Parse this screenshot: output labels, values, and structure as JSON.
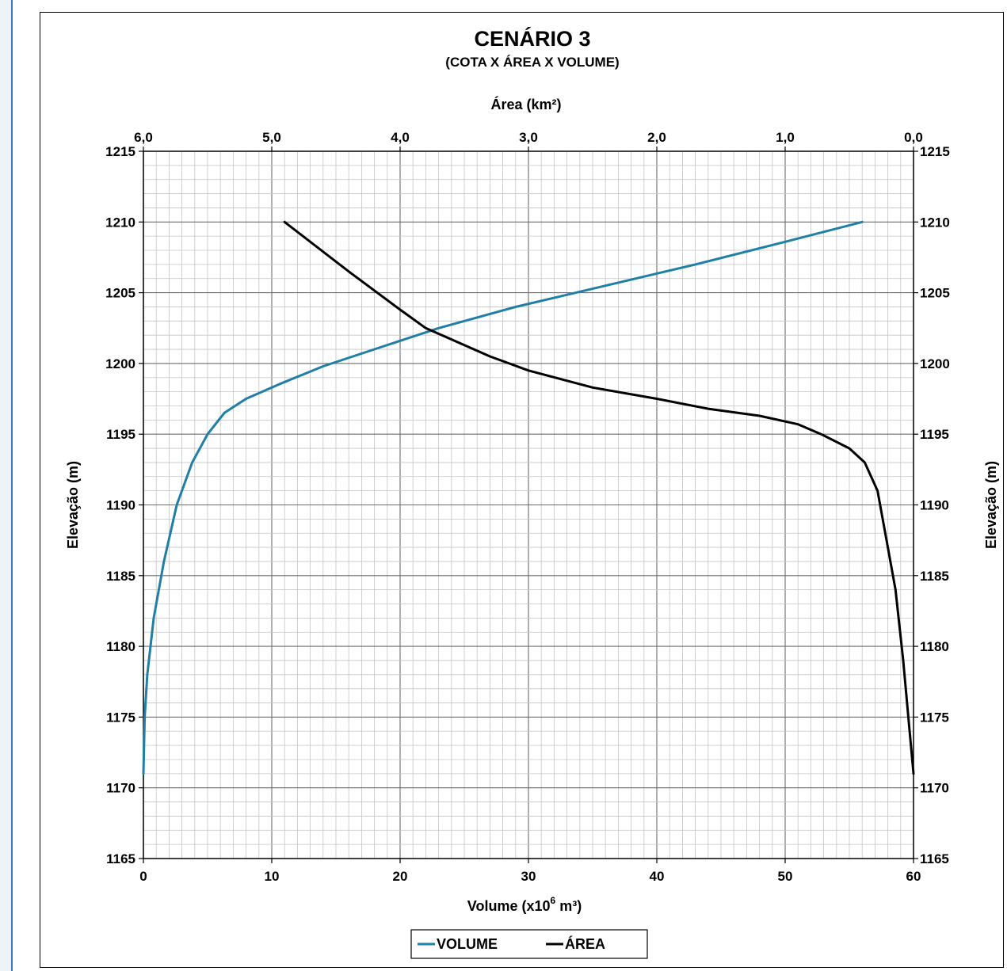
{
  "chart_data": {
    "type": "line",
    "title": "CENÁRIO 3",
    "subtitle": "(COTA X ÁREA X VOLUME)",
    "xlabel_bottom": "Volume (x10",
    "xlabel_bottom_sup": "6",
    "xlabel_bottom_end": " m³)",
    "xlabel_top": "Área (km²)",
    "ylabel_left": "Elevação (m)",
    "ylabel_right": "Elevação (m)",
    "ylim": [
      1165,
      1215
    ],
    "xlim_bottom": [
      0,
      60
    ],
    "xlim_top": [
      6.0,
      0.0
    ],
    "y_ticks": [
      "1165",
      "1170",
      "1175",
      "1180",
      "1185",
      "1190",
      "1195",
      "1200",
      "1205",
      "1210",
      "1215"
    ],
    "x_bottom_ticks": [
      "0",
      "10",
      "20",
      "30",
      "40",
      "50",
      "60"
    ],
    "x_top_ticks": [
      "6,0",
      "5,0",
      "4,0",
      "3,0",
      "2,0",
      "1,0",
      "0,0"
    ],
    "grid": true,
    "legend_position": "bottom",
    "series": [
      {
        "name": "VOLUME",
        "axis": "bottom",
        "color": "#1f7fa6",
        "x": [
          0,
          0.1,
          0.3,
          0.8,
          1.6,
          2.6,
          3.8,
          5.0,
          6.3,
          8.0,
          10.5,
          14.0,
          18.0,
          23.0,
          29.0,
          36.0,
          43.0,
          50.0,
          56.0
        ],
        "y": [
          1171,
          1175,
          1178,
          1182,
          1186,
          1190,
          1193,
          1195,
          1196.5,
          1197.5,
          1198.5,
          1199.8,
          1201,
          1202.5,
          1204,
          1205.5,
          1207,
          1208.6,
          1210
        ]
      },
      {
        "name": "ÁREA",
        "axis": "top",
        "color": "#000000",
        "x": [
          0.0,
          0.03,
          0.08,
          0.14,
          0.2,
          0.28,
          0.38,
          0.5,
          0.72,
          0.9,
          1.2,
          1.6,
          2.0,
          2.5,
          3.0,
          3.3,
          3.8,
          4.0,
          4.4,
          4.9
        ],
        "y": [
          1171,
          1174,
          1179,
          1184,
          1187,
          1191,
          1193,
          1194,
          1195,
          1195.7,
          1196.3,
          1196.8,
          1197.5,
          1198.3,
          1199.5,
          1200.5,
          1202.5,
          1203.8,
          1206.5,
          1210
        ]
      }
    ]
  }
}
